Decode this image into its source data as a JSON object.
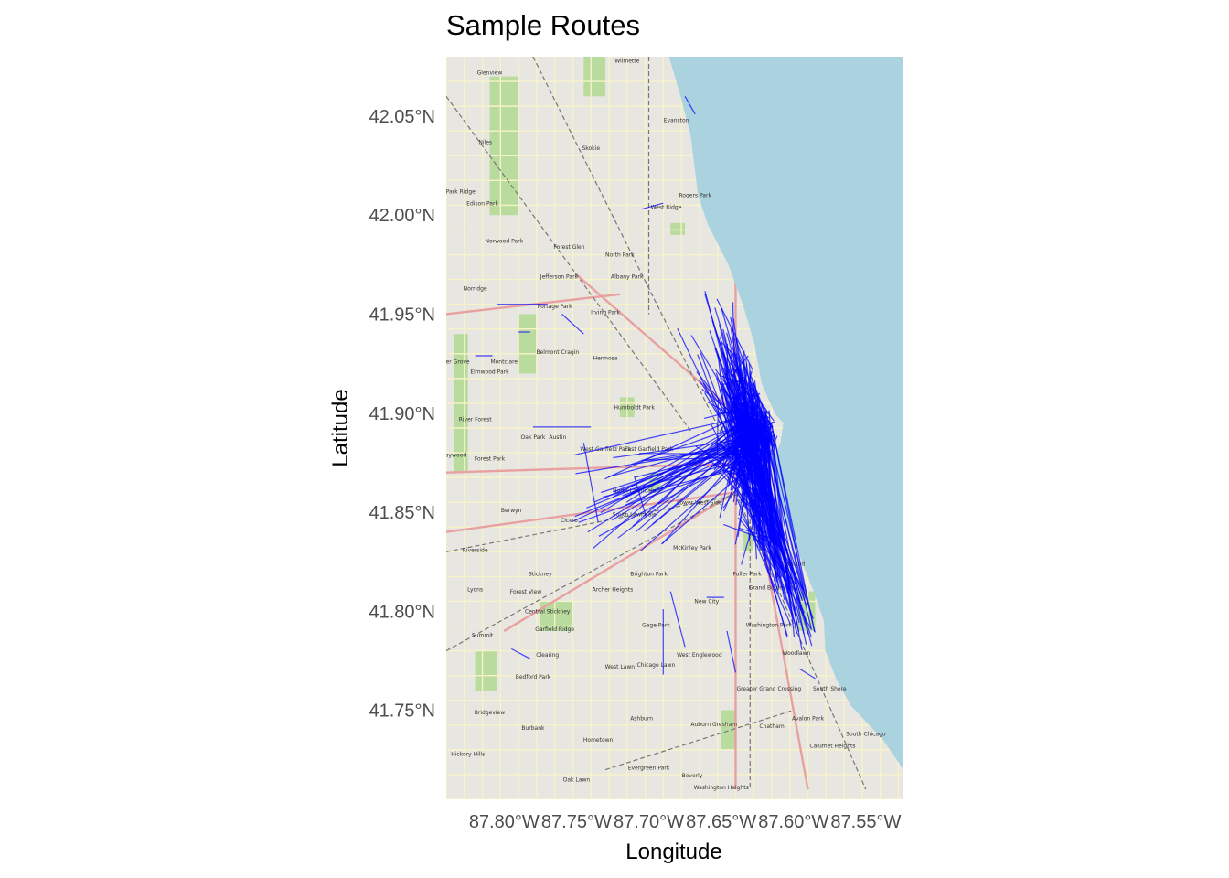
{
  "chart_data": {
    "type": "map-lines",
    "title": "Sample Routes",
    "xlabel": "Longitude",
    "ylabel": "Latitude",
    "xlim": [
      -87.84,
      -87.524
    ],
    "ylim": [
      41.705,
      42.08
    ],
    "x_ticks": [
      {
        "value": -87.8,
        "label": "87.80°W"
      },
      {
        "value": -87.75,
        "label": "87.75°W"
      },
      {
        "value": -87.7,
        "label": "87.70°W"
      },
      {
        "value": -87.65,
        "label": "87.65°W"
      },
      {
        "value": -87.6,
        "label": "87.60°W"
      },
      {
        "value": -87.55,
        "label": "87.55°W"
      }
    ],
    "y_ticks": [
      {
        "value": 42.05,
        "label": "42.05°N"
      },
      {
        "value": 42.0,
        "label": "42.00°N"
      },
      {
        "value": 41.95,
        "label": "41.95°N"
      },
      {
        "value": 41.9,
        "label": "41.90°N"
      },
      {
        "value": 41.85,
        "label": "41.85°N"
      },
      {
        "value": 41.8,
        "label": "41.80°N"
      },
      {
        "value": 41.75,
        "label": "41.75°N"
      }
    ],
    "route_color": "#0000ff",
    "lake_color": "#aad3df",
    "land_color": "#e8e6e1",
    "park_color": "#b9dc9e",
    "hub_center": [
      -87.628,
      41.888
    ],
    "route_count": 420,
    "routes": [
      [
        -87.675,
        42.06,
        -87.668,
        42.051
      ],
      [
        -87.805,
        41.955,
        -87.77,
        41.955
      ],
      [
        -87.82,
        41.929,
        -87.808,
        41.929
      ],
      [
        -87.78,
        41.893,
        -87.74,
        41.893
      ],
      [
        -87.745,
        41.885,
        -87.735,
        41.845
      ],
      [
        -87.71,
        41.868,
        -87.702,
        41.848
      ],
      [
        -87.685,
        41.81,
        -87.675,
        41.782
      ],
      [
        -87.69,
        41.801,
        -87.69,
        41.768
      ],
      [
        -87.795,
        41.781,
        -87.782,
        41.776
      ],
      [
        -87.64,
        41.769,
        -87.646,
        41.79
      ],
      [
        -87.596,
        41.771,
        -87.585,
        41.766
      ],
      [
        -87.66,
        41.807,
        -87.648,
        41.807
      ],
      [
        -87.76,
        41.95,
        -87.745,
        41.94
      ],
      [
        -87.79,
        41.941,
        -87.782,
        41.941
      ],
      [
        -87.705,
        42.003,
        -87.69,
        42.006
      ]
    ]
  },
  "map_labels": [
    {
      "name": "Wilmette",
      "lon": -87.715,
      "lat": 42.077
    },
    {
      "name": "Glenview",
      "lon": -87.81,
      "lat": 42.071
    },
    {
      "name": "Evanston",
      "lon": -87.681,
      "lat": 42.047
    },
    {
      "name": "Skokie",
      "lon": -87.74,
      "lat": 42.033
    },
    {
      "name": "Niles",
      "lon": -87.813,
      "lat": 42.036
    },
    {
      "name": "Park Ridge",
      "lon": -87.83,
      "lat": 42.011
    },
    {
      "name": "Edison Park",
      "lon": -87.815,
      "lat": 42.005
    },
    {
      "name": "Rogers Park",
      "lon": -87.668,
      "lat": 42.009
    },
    {
      "name": "West Ridge",
      "lon": -87.688,
      "lat": 42.003
    },
    {
      "name": "Norwood Park",
      "lon": -87.8,
      "lat": 41.986
    },
    {
      "name": "Forest Glen",
      "lon": -87.755,
      "lat": 41.983
    },
    {
      "name": "North Park",
      "lon": -87.72,
      "lat": 41.979
    },
    {
      "name": "Albany Park",
      "lon": -87.715,
      "lat": 41.968
    },
    {
      "name": "Jefferson Park",
      "lon": -87.762,
      "lat": 41.968
    },
    {
      "name": "Norridge",
      "lon": -87.82,
      "lat": 41.962
    },
    {
      "name": "Portage Park",
      "lon": -87.765,
      "lat": 41.953
    },
    {
      "name": "Irving Park",
      "lon": -87.73,
      "lat": 41.95
    },
    {
      "name": "Belmont Cragin",
      "lon": -87.763,
      "lat": 41.93
    },
    {
      "name": "Hermosa",
      "lon": -87.73,
      "lat": 41.927
    },
    {
      "name": "Montclare",
      "lon": -87.8,
      "lat": 41.925
    },
    {
      "name": "Elmwood Park",
      "lon": -87.81,
      "lat": 41.92
    },
    {
      "name": "River Grove",
      "lon": -87.835,
      "lat": 41.925
    },
    {
      "name": "Humboldt Park",
      "lon": -87.71,
      "lat": 41.902
    },
    {
      "name": "River Forest",
      "lon": -87.82,
      "lat": 41.896
    },
    {
      "name": "Oak Park",
      "lon": -87.78,
      "lat": 41.887
    },
    {
      "name": "Austin",
      "lon": -87.763,
      "lat": 41.887
    },
    {
      "name": "West Garfield Park",
      "lon": -87.73,
      "lat": 41.881
    },
    {
      "name": "East Garfield Park",
      "lon": -87.7,
      "lat": 41.881
    },
    {
      "name": "Forest Park",
      "lon": -87.81,
      "lat": 41.876
    },
    {
      "name": "Maywood",
      "lon": -87.835,
      "lat": 41.878
    },
    {
      "name": "North Lawndale",
      "lon": -87.71,
      "lat": 41.86
    },
    {
      "name": "Lower West Side",
      "lon": -87.665,
      "lat": 41.854
    },
    {
      "name": "South Lawndale",
      "lon": -87.71,
      "lat": 41.848
    },
    {
      "name": "Berwyn",
      "lon": -87.795,
      "lat": 41.85
    },
    {
      "name": "Cicero",
      "lon": -87.755,
      "lat": 41.845
    },
    {
      "name": "McKinley Park",
      "lon": -87.67,
      "lat": 41.831
    },
    {
      "name": "Riverside",
      "lon": -87.82,
      "lat": 41.83
    },
    {
      "name": "Oakland",
      "lon": -87.6,
      "lat": 41.823
    },
    {
      "name": "Brighton Park",
      "lon": -87.7,
      "lat": 41.818
    },
    {
      "name": "Stickney",
      "lon": -87.775,
      "lat": 41.818
    },
    {
      "name": "Fuller Park",
      "lon": -87.632,
      "lat": 41.818
    },
    {
      "name": "Grand Boulevard",
      "lon": -87.615,
      "lat": 41.811
    },
    {
      "name": "Archer Heights",
      "lon": -87.725,
      "lat": 41.81
    },
    {
      "name": "Lyons",
      "lon": -87.82,
      "lat": 41.81
    },
    {
      "name": "Forest View",
      "lon": -87.785,
      "lat": 41.809
    },
    {
      "name": "New City",
      "lon": -87.66,
      "lat": 41.804
    },
    {
      "name": "Central Stickney",
      "lon": -87.77,
      "lat": 41.799
    },
    {
      "name": "Gage Park",
      "lon": -87.695,
      "lat": 41.792
    },
    {
      "name": "Washington Park",
      "lon": -87.617,
      "lat": 41.792
    },
    {
      "name": "Garfield Ridge",
      "lon": -87.765,
      "lat": 41.79
    },
    {
      "name": "Summit",
      "lon": -87.815,
      "lat": 41.787
    },
    {
      "name": "Clearing",
      "lon": -87.77,
      "lat": 41.777
    },
    {
      "name": "West Englewood",
      "lon": -87.665,
      "lat": 41.777
    },
    {
      "name": "Woodlawn",
      "lon": -87.598,
      "lat": 41.778
    },
    {
      "name": "West Lawn",
      "lon": -87.72,
      "lat": 41.771
    },
    {
      "name": "Chicago Lawn",
      "lon": -87.695,
      "lat": 41.772
    },
    {
      "name": "Bedford Park",
      "lon": -87.78,
      "lat": 41.766
    },
    {
      "name": "Greater Grand Crossing",
      "lon": -87.617,
      "lat": 41.76
    },
    {
      "name": "South Shore",
      "lon": -87.575,
      "lat": 41.76
    },
    {
      "name": "Bridgeview",
      "lon": -87.81,
      "lat": 41.748
    },
    {
      "name": "Ashburn",
      "lon": -87.705,
      "lat": 41.745
    },
    {
      "name": "Avalon Park",
      "lon": -87.59,
      "lat": 41.745
    },
    {
      "name": "Auburn Gresham",
      "lon": -87.655,
      "lat": 41.742
    },
    {
      "name": "Burbank",
      "lon": -87.78,
      "lat": 41.74
    },
    {
      "name": "Chatham",
      "lon": -87.615,
      "lat": 41.741
    },
    {
      "name": "South Chicago",
      "lon": -87.55,
      "lat": 41.737
    },
    {
      "name": "Calumet Heights",
      "lon": -87.573,
      "lat": 41.731
    },
    {
      "name": "Hometown",
      "lon": -87.735,
      "lat": 41.734
    },
    {
      "name": "Hickory Hills",
      "lon": -87.825,
      "lat": 41.727
    },
    {
      "name": "Evergreen Park",
      "lon": -87.7,
      "lat": 41.72
    },
    {
      "name": "Beverly",
      "lon": -87.67,
      "lat": 41.716
    },
    {
      "name": "Oak Lawn",
      "lon": -87.75,
      "lat": 41.714
    },
    {
      "name": "Washington Heights",
      "lon": -87.65,
      "lat": 41.71
    }
  ]
}
